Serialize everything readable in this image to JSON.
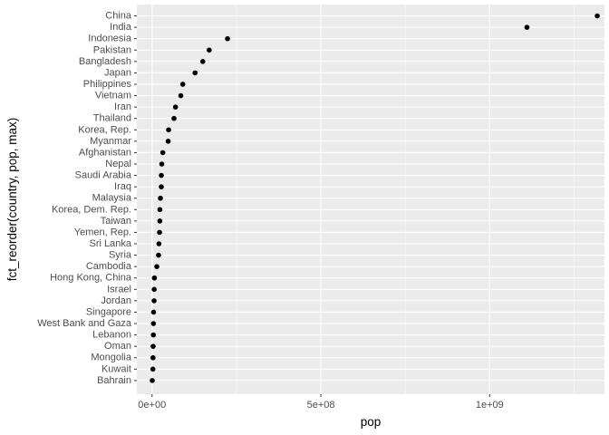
{
  "chart_data": {
    "type": "scatter",
    "xlabel": "pop",
    "ylabel": "fct_reorder(country, pop, max)",
    "xlim": [
      -45000000,
      1340000000
    ],
    "x_ticks": [
      {
        "value": 0,
        "label": "0e+00"
      },
      {
        "value": 500000000,
        "label": "5e+08"
      },
      {
        "value": 1000000000,
        "label": "1e+09"
      }
    ],
    "grid": true,
    "points": [
      {
        "country": "China",
        "pop": 1318683096
      },
      {
        "country": "India",
        "pop": 1110396331
      },
      {
        "country": "Indonesia",
        "pop": 223547000
      },
      {
        "country": "Pakistan",
        "pop": 169270617
      },
      {
        "country": "Bangladesh",
        "pop": 150448339
      },
      {
        "country": "Japan",
        "pop": 127467972
      },
      {
        "country": "Philippines",
        "pop": 91077287
      },
      {
        "country": "Vietnam",
        "pop": 85262356
      },
      {
        "country": "Iran",
        "pop": 69453570
      },
      {
        "country": "Thailand",
        "pop": 65068149
      },
      {
        "country": "Korea, Rep.",
        "pop": 49044790
      },
      {
        "country": "Myanmar",
        "pop": 47761980
      },
      {
        "country": "Afghanistan",
        "pop": 31889923
      },
      {
        "country": "Nepal",
        "pop": 28901790
      },
      {
        "country": "Saudi Arabia",
        "pop": 27601038
      },
      {
        "country": "Iraq",
        "pop": 27499638
      },
      {
        "country": "Malaysia",
        "pop": 24821286
      },
      {
        "country": "Korea, Dem. Rep.",
        "pop": 23301725
      },
      {
        "country": "Taiwan",
        "pop": 23174294
      },
      {
        "country": "Yemen, Rep.",
        "pop": 22211743
      },
      {
        "country": "Sri Lanka",
        "pop": 20378239
      },
      {
        "country": "Syria",
        "pop": 19314747
      },
      {
        "country": "Cambodia",
        "pop": 14131858
      },
      {
        "country": "Hong Kong, China",
        "pop": 6980412
      },
      {
        "country": "Israel",
        "pop": 6426679
      },
      {
        "country": "Jordan",
        "pop": 6053193
      },
      {
        "country": "Singapore",
        "pop": 4553009
      },
      {
        "country": "West Bank and Gaza",
        "pop": 4018332
      },
      {
        "country": "Lebanon",
        "pop": 3921278
      },
      {
        "country": "Oman",
        "pop": 3204897
      },
      {
        "country": "Mongolia",
        "pop": 2874127
      },
      {
        "country": "Kuwait",
        "pop": 2505559
      },
      {
        "country": "Bahrain",
        "pop": 708573
      }
    ]
  }
}
